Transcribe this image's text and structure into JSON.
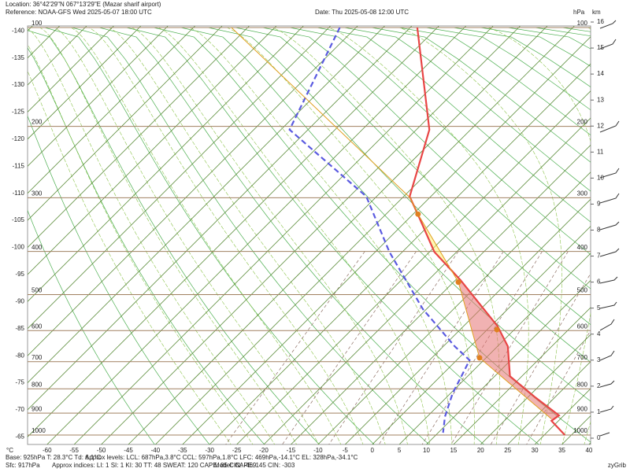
{
  "chart_data": {
    "type": "skewt",
    "location": "Location:  36°42'29\"N  067°13'29\"E (Mazar sharif airport)",
    "reference": "Reference: NOAA-GFS Wed 2025-05-07 18:00 UTC",
    "date": "Date: Thu 2025-05-08 12:00 UTC",
    "pressure_unit": "hPa",
    "height_unit": "km",
    "temperature_unit": "°C",
    "info_line_1": [
      "Base: 925hPa  T: 28.3°C  Td: 6.1°C",
      "Approx levels:  LCL: 687hPa,3.8°C  CCL: 597hPa,1.8°C  LFC: 469hPa,-14.1°C  EL: 328hPa,-34.1°C"
    ],
    "info_line_2": [
      "Sfc: 917hPa",
      "Approx indices:  LI: 1  SI: 1  KI: 30  TT: 48  SWEAT: 120  CAPE: 85  CIN: -469",
      "Model: CAPE: 145 CIN: -303"
    ],
    "source": "zyGrib",
    "xlim": [
      -63.6,
      40.3
    ],
    "xticks": [
      -60,
      -55,
      -50,
      -45,
      -40,
      -35,
      -30,
      -25,
      -20,
      -15,
      -10,
      -5,
      0,
      5,
      10,
      15,
      20,
      25,
      30,
      35,
      40
    ],
    "xticks_left": [
      -140,
      -135,
      -130,
      -125,
      -120,
      -115,
      -110,
      -105,
      -100,
      -95,
      -90,
      -85,
      -80,
      -75,
      -70,
      -65
    ],
    "ylim": [
      1000,
      100
    ],
    "yticks": [
      100,
      200,
      300,
      400,
      500,
      600,
      700,
      800,
      900,
      1000
    ],
    "kmlim": [
      0,
      16
    ],
    "kmticks": [
      0,
      1,
      2,
      3,
      4,
      5,
      6,
      7,
      8,
      9,
      10,
      11,
      12,
      13,
      14,
      15,
      16
    ],
    "series": [
      {
        "color": "#e84545",
        "pressure": [
          100,
          204,
          298,
          327,
          401,
          464,
          587,
          649,
          752,
          834,
          910,
          934,
          1000
        ],
        "values": [
          -68.7,
          -47.6,
          -38.9,
          -34.3,
          -24.1,
          -14.1,
          1.3,
          6.9,
          12.8,
          21.4,
          29.1,
          28.7,
          33.8
        ]
      },
      {
        "color": "#5a5ae0",
        "dashed": true,
        "pressure": [
          100,
          204,
          298,
          401,
          538,
          649,
          695,
          818,
          916,
          989
        ],
        "values": [
          -83,
          -73.4,
          -46.9,
          -32.4,
          -15.7,
          -2.9,
          2.4,
          5.4,
          8.3,
          10.9
        ]
      },
      {
        "color": "#e0a020",
        "pressure": [
          925,
          687,
          469,
          328,
          300,
          100
        ],
        "values": [
          28.3,
          3.8,
          -14.1,
          -34.1,
          -38.6,
          -103
        ]
      }
    ],
    "markers": {
      "color": "#e08020",
      "pressure": [
        328,
        469,
        597,
        687
      ],
      "values": [
        -34.1,
        -14.1,
        1.8,
        3.8
      ]
    }
  }
}
